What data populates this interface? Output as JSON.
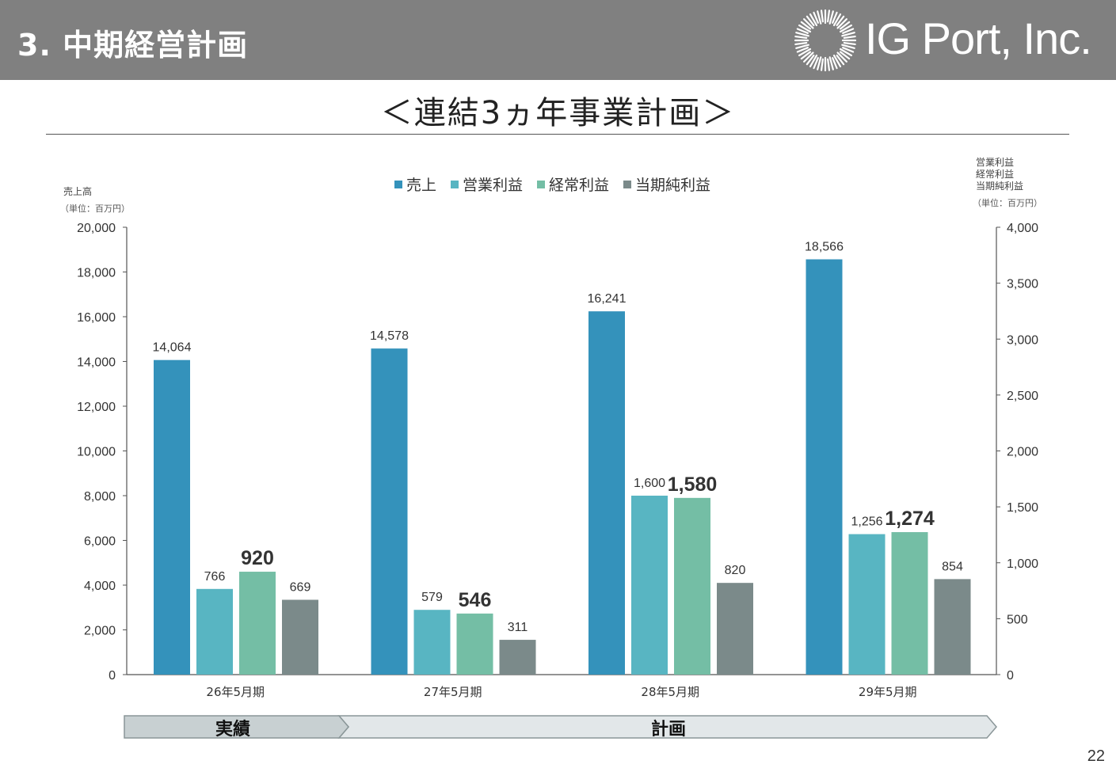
{
  "header": {
    "title": "3. 中期経営計画",
    "company": "IG Port, Inc."
  },
  "subtitle": "＜連結3ヵ年事業計画＞",
  "page_number": "22",
  "phases": {
    "actual": "実績",
    "plan": "計画"
  },
  "colors": {
    "header_bg": "#808080",
    "sales": "#3492bb",
    "operating_profit": "#58b5c2",
    "ordinary_profit": "#74bea5",
    "net_profit": "#7b8a8a",
    "phase_actual": "#c8d0d2",
    "phase_plan": "#e2e7e9"
  },
  "chart_data": {
    "type": "bar",
    "categories": [
      "26年5月期",
      "27年5月期",
      "28年5月期",
      "29年5月期"
    ],
    "series": [
      {
        "name": "売上",
        "axis": "left",
        "values": [
          14064,
          14578,
          16241,
          18566
        ],
        "labels": [
          "14,064",
          "14,578",
          "16,241",
          "18,566"
        ]
      },
      {
        "name": "営業利益",
        "axis": "right",
        "values": [
          766,
          579,
          1600,
          1256
        ],
        "labels": [
          "766",
          "579",
          "1,600",
          "1,256"
        ]
      },
      {
        "name": "経常利益",
        "axis": "right",
        "values": [
          920,
          546,
          1580,
          1274
        ],
        "labels": [
          "920",
          "546",
          "1,580",
          "1,274"
        ],
        "emphasis": true
      },
      {
        "name": "当期純利益",
        "axis": "right",
        "values": [
          669,
          311,
          820,
          854
        ],
        "labels": [
          "669",
          "311",
          "820",
          "854"
        ]
      }
    ],
    "left_axis": {
      "label": "売上高",
      "unit": "（単位：百万円）",
      "range": [
        0,
        20000
      ],
      "ticks": [
        0,
        2000,
        4000,
        6000,
        8000,
        10000,
        12000,
        14000,
        16000,
        18000,
        20000
      ],
      "tick_labels": [
        "0",
        "2,000",
        "4,000",
        "6,000",
        "8,000",
        "10,000",
        "12,000",
        "14,000",
        "16,000",
        "18,000",
        "20,000"
      ]
    },
    "right_axis": {
      "labels": [
        "営業利益",
        "経常利益",
        "当期純利益"
      ],
      "unit": "（単位：百万円）",
      "range": [
        0,
        4000
      ],
      "ticks": [
        0,
        500,
        1000,
        1500,
        2000,
        2500,
        3000,
        3500,
        4000
      ],
      "tick_labels": [
        "0",
        "500",
        "1,000",
        "1,500",
        "2,000",
        "2,500",
        "3,000",
        "3,500",
        "4,000"
      ]
    },
    "legend": {
      "position": "top-center",
      "entries": [
        "売上",
        "営業利益",
        "経常利益",
        "当期純利益"
      ]
    },
    "grid": false
  }
}
